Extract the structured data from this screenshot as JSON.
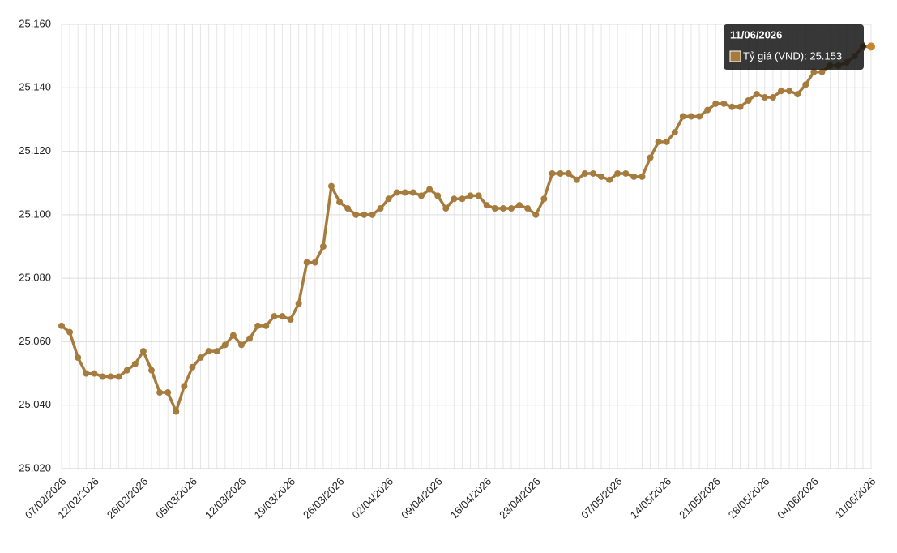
{
  "chart_data": {
    "type": "line",
    "categories": [
      "07/02/2026",
      null,
      null,
      null,
      "12/02/2026",
      null,
      null,
      null,
      null,
      null,
      "26/02/2026",
      null,
      null,
      null,
      null,
      null,
      "05/03/2026",
      null,
      null,
      null,
      null,
      null,
      "12/03/2026",
      null,
      null,
      null,
      null,
      null,
      "19/03/2026",
      null,
      null,
      null,
      null,
      null,
      "26/03/2026",
      null,
      null,
      null,
      null,
      null,
      "02/04/2026",
      null,
      null,
      null,
      null,
      null,
      "09/04/2026",
      null,
      null,
      null,
      null,
      null,
      "16/04/2026",
      null,
      null,
      null,
      null,
      null,
      "23/04/2026",
      null,
      null,
      null,
      null,
      null,
      null,
      null,
      null,
      null,
      "07/05/2026",
      null,
      null,
      null,
      null,
      null,
      "14/05/2026",
      null,
      null,
      null,
      null,
      null,
      "21/05/2026",
      null,
      null,
      null,
      null,
      null,
      "28/05/2026",
      null,
      null,
      null,
      null,
      null,
      "04/06/2026",
      null,
      null,
      null,
      null,
      null,
      null,
      "11/06/2026"
    ],
    "series": [
      {
        "name": "Tỷ giá (VND)",
        "color": "#a67c3e",
        "values": [
          25.065,
          25.063,
          25.055,
          25.05,
          25.05,
          25.049,
          25.049,
          25.049,
          25.051,
          25.053,
          25.057,
          25.051,
          25.044,
          25.044,
          25.038,
          25.046,
          25.052,
          25.055,
          25.057,
          25.057,
          25.059,
          25.062,
          25.059,
          25.061,
          25.065,
          25.065,
          25.068,
          25.068,
          25.067,
          25.072,
          25.085,
          25.085,
          25.09,
          25.109,
          25.104,
          25.102,
          25.1,
          25.1,
          25.1,
          25.102,
          25.105,
          25.107,
          25.107,
          25.107,
          25.106,
          25.108,
          25.106,
          25.102,
          25.105,
          25.105,
          25.106,
          25.106,
          25.103,
          25.102,
          25.102,
          25.102,
          25.103,
          25.102,
          25.1,
          25.105,
          25.113,
          25.113,
          25.113,
          25.111,
          25.113,
          25.113,
          25.112,
          25.111,
          25.113,
          25.113,
          25.112,
          25.112,
          25.118,
          25.123,
          25.123,
          25.126,
          25.131,
          25.131,
          25.131,
          25.133,
          25.135,
          25.135,
          25.134,
          25.134,
          25.136,
          25.138,
          25.137,
          25.137,
          25.139,
          25.139,
          25.138,
          25.141,
          25.145,
          25.145,
          25.147,
          25.147,
          25.148,
          25.15,
          25.153,
          25.153
        ]
      }
    ],
    "ylim": [
      25.02,
      25.16
    ],
    "yticks": [
      {
        "value": 25.02,
        "label": "25.020"
      },
      {
        "value": 25.04,
        "label": "25.040"
      },
      {
        "value": 25.06,
        "label": "25.060"
      },
      {
        "value": 25.08,
        "label": "25.080"
      },
      {
        "value": 25.1,
        "label": "25.100"
      },
      {
        "value": 25.12,
        "label": "25.120"
      },
      {
        "value": 25.14,
        "label": "25.140"
      },
      {
        "value": 25.16,
        "label": "25.160"
      }
    ],
    "grid": true,
    "highlight_color": "#c8862a",
    "tooltip": {
      "title": "11/06/2026",
      "label": "Tỷ giá (VND): 25.153"
    }
  }
}
